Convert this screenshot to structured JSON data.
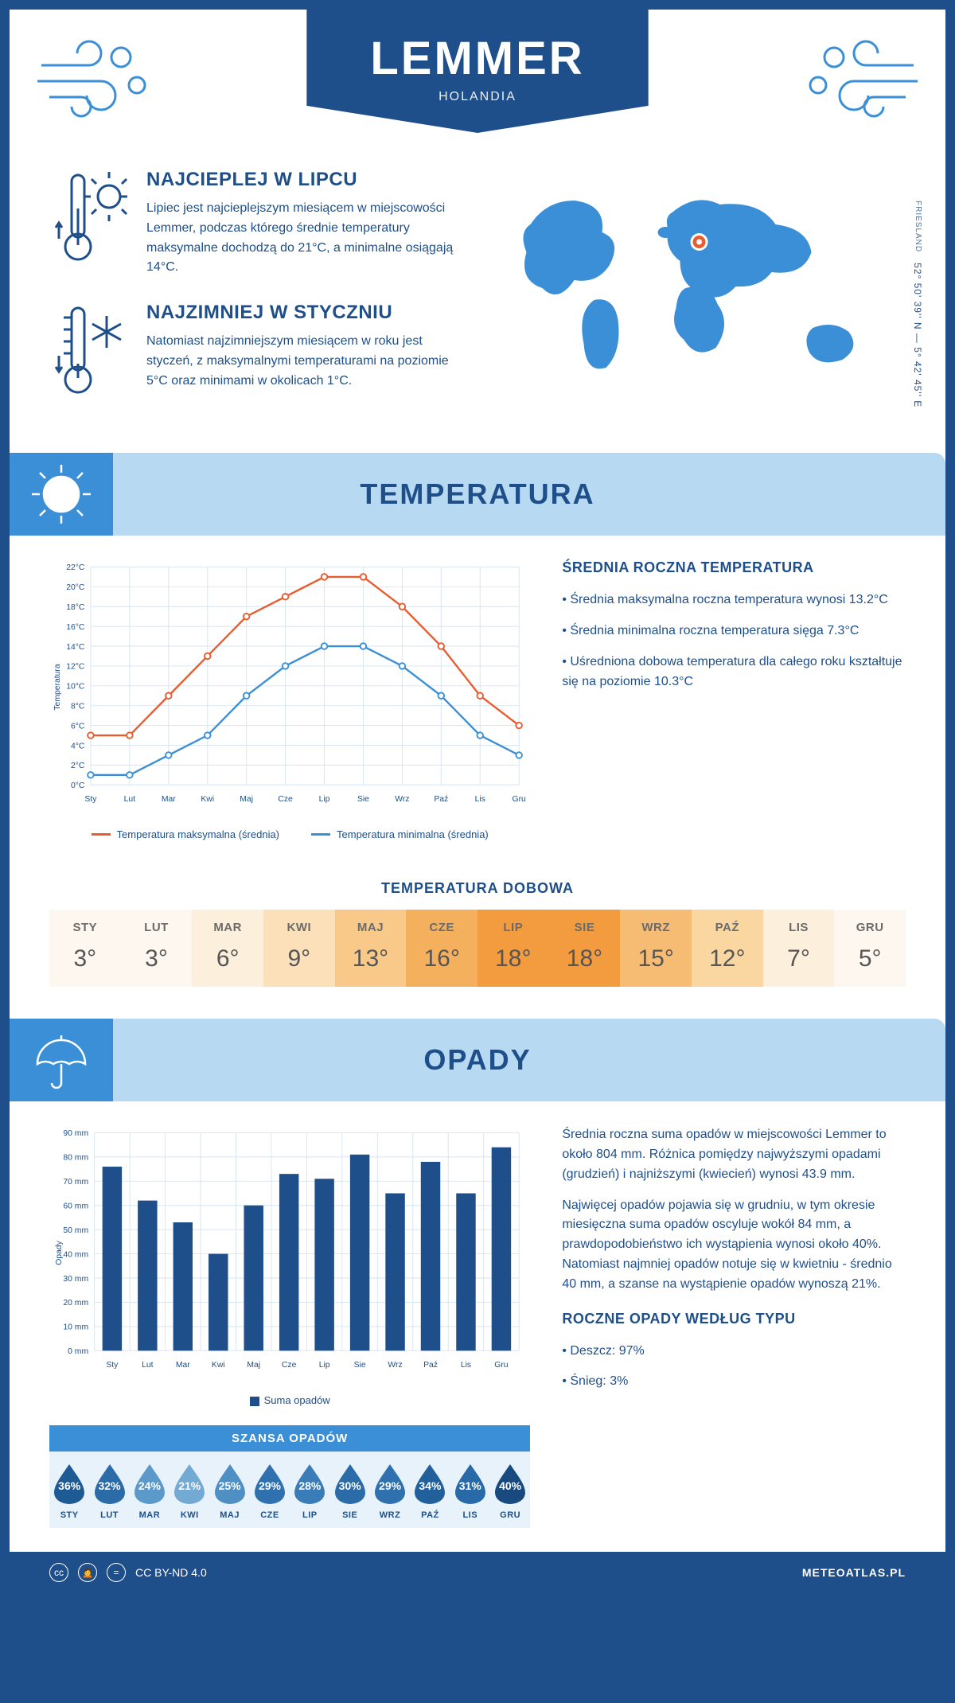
{
  "header": {
    "title": "LEMMER",
    "subtitle": "HOLANDIA"
  },
  "location": {
    "coords": "52° 50' 39'' N — 5° 42' 45'' E",
    "region": "FRIESLAND",
    "marker_color": "#e85c2f"
  },
  "intro": {
    "hot": {
      "title": "NAJCIEPLEJ W LIPCU",
      "body": "Lipiec jest najcieplejszym miesiącem w miejscowości Lemmer, podczas którego średnie temperatury maksymalne dochodzą do 21°C, a minimalne osiągają 14°C."
    },
    "cold": {
      "title": "NAJZIMNIEJ W STYCZNIU",
      "body": "Natomiast najzimniejszym miesiącem w roku jest styczeń, z maksymalnymi temperaturami na poziomie 5°C oraz minimami w okolicach 1°C."
    }
  },
  "sections": {
    "temp_title": "TEMPERATURA",
    "precip_title": "OPADY"
  },
  "temp_chart": {
    "type": "line",
    "months": [
      "Sty",
      "Lut",
      "Mar",
      "Kwi",
      "Maj",
      "Cze",
      "Lip",
      "Sie",
      "Wrz",
      "Paź",
      "Lis",
      "Gru"
    ],
    "y_label": "Temperatura",
    "y_min": 0,
    "y_max": 22,
    "y_step": 2,
    "y_unit": "°C",
    "series": [
      {
        "name": "Temperatura maksymalna (średnia)",
        "color": "#e85c2f",
        "values": [
          5,
          5,
          9,
          13,
          17,
          19,
          21,
          21,
          18,
          14,
          9,
          6
        ]
      },
      {
        "name": "Temperatura minimalna (średnia)",
        "color": "#3b8fd6",
        "values": [
          1,
          1,
          3,
          5,
          9,
          12,
          14,
          14,
          12,
          9,
          5,
          3
        ]
      }
    ],
    "grid_color": "#d5e5f3",
    "background": "#ffffff",
    "label_fontsize": 11,
    "line_width": 2.5,
    "marker": "circle"
  },
  "temp_side": {
    "title": "ŚREDNIA ROCZNA TEMPERATURA",
    "bullets": [
      "Średnia maksymalna roczna temperatura wynosi 13.2°C",
      "Średnia minimalna roczna temperatura sięga 7.3°C",
      "Uśredniona dobowa temperatura dla całego roku kształtuje się na poziomie 10.3°C"
    ]
  },
  "daily_temp": {
    "title": "TEMPERATURA DOBOWA",
    "months": [
      "STY",
      "LUT",
      "MAR",
      "KWI",
      "MAJ",
      "CZE",
      "LIP",
      "SIE",
      "WRZ",
      "PAŹ",
      "LIS",
      "GRU"
    ],
    "values": [
      "3°",
      "3°",
      "6°",
      "9°",
      "13°",
      "16°",
      "18°",
      "18°",
      "15°",
      "12°",
      "7°",
      "5°"
    ],
    "colors": [
      "#fdf7ef",
      "#fdf7ef",
      "#fcefdc",
      "#fbe0b9",
      "#f8c988",
      "#f5b05e",
      "#f29b3f",
      "#f29b3f",
      "#f7bc73",
      "#fad6a1",
      "#fcefdc",
      "#fdf7ef"
    ]
  },
  "precip_chart": {
    "type": "bar",
    "months": [
      "Sty",
      "Lut",
      "Mar",
      "Kwi",
      "Maj",
      "Cze",
      "Lip",
      "Sie",
      "Wrz",
      "Paź",
      "Lis",
      "Gru"
    ],
    "y_label": "Opady",
    "y_min": 0,
    "y_max": 90,
    "y_step": 10,
    "y_unit": " mm",
    "values": [
      76,
      62,
      53,
      40,
      60,
      73,
      71,
      81,
      65,
      78,
      65,
      84
    ],
    "bar_color": "#1e4f8a",
    "grid_color": "#d5e5f3",
    "background": "#ffffff",
    "legend": "Suma opadów",
    "bar_width": 0.55,
    "label_fontsize": 11
  },
  "precip_side": {
    "p1": "Średnia roczna suma opadów w miejscowości Lemmer to około 804 mm. Różnica pomiędzy najwyższymi opadami (grudzień) i najniższymi (kwiecień) wynosi 43.9 mm.",
    "p2": "Najwięcej opadów pojawia się w grudniu, w tym okresie miesięczna suma opadów oscyluje wokół 84 mm, a prawdopodobieństwo ich wystąpienia wynosi około 40%. Natomiast najmniej opadów notuje się w kwietniu - średnio 40 mm, a szanse na wystąpienie opadów wynoszą 21%.",
    "type_title": "ROCZNE OPADY WEDŁUG TYPU",
    "type_rain": "Deszcz: 97%",
    "type_snow": "Śnieg: 3%"
  },
  "chance": {
    "title": "SZANSA OPADÓW",
    "months": [
      "STY",
      "LUT",
      "MAR",
      "KWI",
      "MAJ",
      "CZE",
      "LIP",
      "SIE",
      "WRZ",
      "PAŹ",
      "LIS",
      "GRU"
    ],
    "values": [
      "36%",
      "32%",
      "24%",
      "21%",
      "25%",
      "29%",
      "28%",
      "30%",
      "29%",
      "34%",
      "31%",
      "40%"
    ],
    "colors": [
      "#1e5a94",
      "#2a6ba8",
      "#5a99ca",
      "#72aad4",
      "#4f90c4",
      "#2f71af",
      "#3a7cb7",
      "#2a6ba8",
      "#2f71af",
      "#22609c",
      "#286aa7",
      "#184a80"
    ]
  },
  "footer": {
    "license": "CC BY-ND 4.0",
    "site": "METEOATLAS.PL"
  },
  "palette": {
    "primary": "#1e4f8a",
    "light_blue": "#3b8fd6",
    "banner_bg": "#b8d9f2",
    "map_fill": "#3b8fd6"
  }
}
